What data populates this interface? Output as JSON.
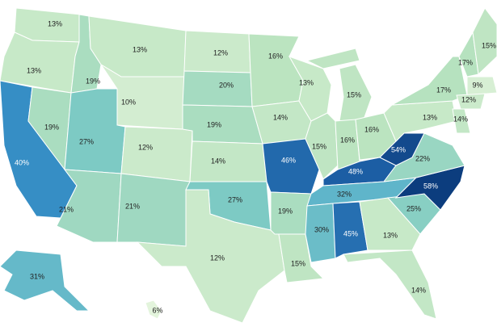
{
  "chart_data": {
    "type": "choropleth",
    "values": [
      13,
      13,
      40,
      19,
      19,
      13,
      10,
      27,
      21,
      12,
      21,
      12,
      20,
      19,
      14,
      27,
      12,
      16,
      14,
      46,
      19,
      15,
      13,
      15,
      15,
      16,
      16,
      48,
      32,
      30,
      45,
      13,
      14,
      25,
      58,
      22,
      54,
      13,
      17,
      17,
      15,
      9,
      12,
      14,
      31,
      6
    ],
    "value_labels": [
      "13%",
      "13%",
      "40%",
      "19%",
      "19%",
      "13%",
      "10%",
      "27%",
      "21%",
      "12%",
      "21%",
      "12%",
      "20%",
      "19%",
      "14%",
      "27%",
      "12%",
      "16%",
      "14%",
      "46%",
      "19%",
      "15%",
      "13%",
      "15%",
      "15%",
      "16%",
      "16%",
      "48%",
      "32%",
      "30%",
      "45%",
      "13%",
      "14%",
      "25%",
      "58%",
      "22%",
      "54%",
      "13%",
      "17%",
      "17%",
      "15%",
      "9%",
      "12%",
      "14%",
      "31%",
      "6%"
    ],
    "colors": [
      "#e3f4dc",
      "#b9e3bf",
      "#7ecbc4",
      "#3f9fd0",
      "#1d5fa6",
      "#0c3d7e"
    ]
  }
}
